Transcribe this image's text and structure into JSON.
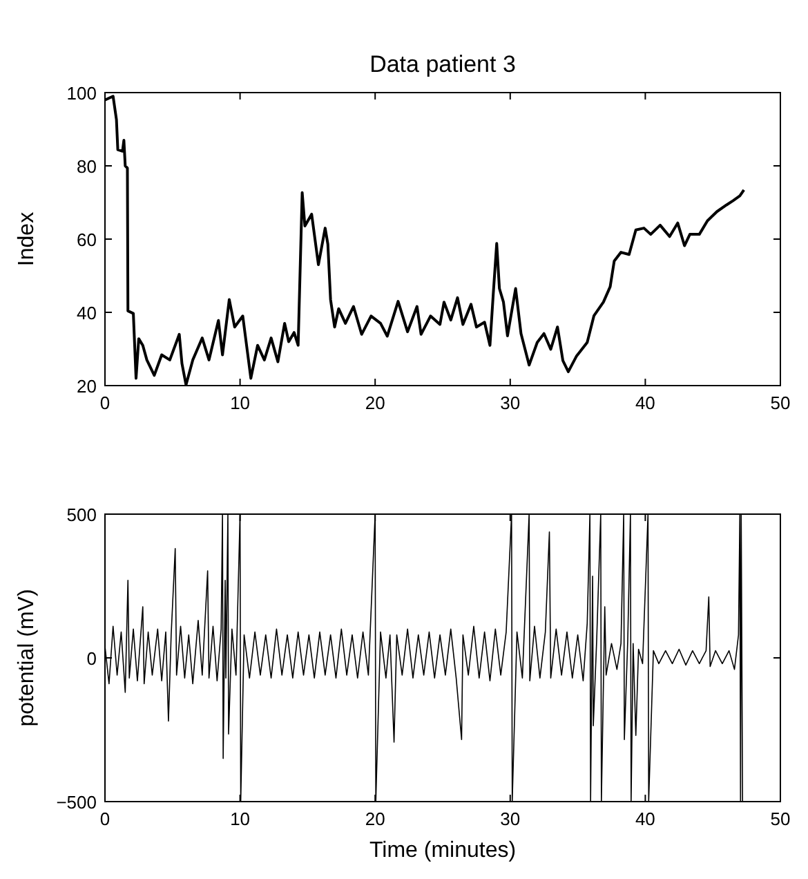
{
  "chart_data": [
    {
      "type": "line",
      "title": "Data patient 3",
      "ylabel": "Index",
      "xlim": [
        0,
        50
      ],
      "xticks": [
        0,
        10,
        20,
        30,
        40,
        50
      ],
      "ylim": [
        20,
        100
      ],
      "yticks": [
        20,
        40,
        60,
        80,
        100
      ],
      "grid": false,
      "marker": "none",
      "line_style": "solid",
      "series": [
        {
          "color": "#000000",
          "x": [
            0,
            0.6,
            0.85,
            0.95,
            1.3,
            1.4,
            1.5,
            1.66,
            1.7,
            2.1,
            2.3,
            2.5,
            2.8,
            3.1,
            3.65,
            4.2,
            4.8,
            5.5,
            5.7,
            6.0,
            6.5,
            7.2,
            7.7,
            8.4,
            8.7,
            9.2,
            9.6,
            10.2,
            10.8,
            11.3,
            11.8,
            12.3,
            12.8,
            13.3,
            13.6,
            14.0,
            14.3,
            14.6,
            14.8,
            15.3,
            15.8,
            16.3,
            16.5,
            16.7,
            17.0,
            17.3,
            17.8,
            18.4,
            19.0,
            19.7,
            20.4,
            20.9,
            21.7,
            22.4,
            23.1,
            23.4,
            24.1,
            24.8,
            25.1,
            25.6,
            26.1,
            26.5,
            27.1,
            27.5,
            28.1,
            28.5,
            28.75,
            29.0,
            29.2,
            29.5,
            29.8,
            30.4,
            30.8,
            31.4,
            32.0,
            32.5,
            33.0,
            33.5,
            33.9,
            34.3,
            34.9,
            35.7,
            36.2,
            36.9,
            37.4,
            37.7,
            38.2,
            38.8,
            39.3,
            39.9,
            40.4,
            41.1,
            41.8,
            42.4,
            42.9,
            43.3,
            44.0,
            44.6,
            45.3,
            46.0,
            46.5,
            47.0,
            47.3
          ],
          "values": [
            98,
            99,
            92.6,
            84.4,
            84,
            87,
            80,
            79.4,
            40.4,
            39.7,
            22,
            32.8,
            31,
            27,
            22.8,
            28.4,
            27,
            34,
            26,
            20.2,
            27,
            33,
            27,
            37.8,
            28.4,
            43.5,
            36,
            39,
            22,
            31,
            27,
            33,
            26.5,
            37,
            32,
            34.5,
            31,
            72.7,
            63.6,
            66.8,
            53,
            63,
            58.6,
            43.5,
            36,
            41,
            37,
            41.6,
            34,
            39,
            37,
            33.5,
            43,
            34.7,
            41.6,
            34,
            39,
            36.7,
            42.8,
            37.9,
            44,
            36.7,
            42.2,
            36,
            37.3,
            31,
            45.3,
            58.8,
            46.5,
            42.8,
            33.6,
            46.5,
            34.2,
            25.6,
            31.8,
            34.2,
            29.9,
            36,
            26.8,
            23.8,
            28,
            31.8,
            39.1,
            42.8,
            47,
            54,
            56.4,
            55.8,
            62.5,
            63,
            61.3,
            63.8,
            60.7,
            64.4,
            58.2,
            61.3,
            61.3,
            65,
            67.5,
            69.3,
            70.5,
            71.8,
            73.4
          ]
        }
      ]
    },
    {
      "type": "line",
      "xlabel": "Time (minutes)",
      "ylabel": "potential (mV)",
      "xlim": [
        0,
        50
      ],
      "xticks": [
        0,
        10,
        20,
        30,
        40,
        50
      ],
      "ylim": [
        -500,
        500
      ],
      "yticks": [
        {
          "value": -500,
          "label": "−500"
        },
        0,
        500
      ],
      "grid": false,
      "marker": "none",
      "line_style": "solid",
      "series": [
        {
          "color": "#000000",
          "x": [
            0,
            0.3,
            0.6,
            0.9,
            1.2,
            1.5,
            1.7,
            1.8,
            2.1,
            2.4,
            2.8,
            2.9,
            3.2,
            3.5,
            3.9,
            4.2,
            4.5,
            4.7,
            4.9,
            5.2,
            5.3,
            5.6,
            5.9,
            6.2,
            6.5,
            6.9,
            7.2,
            7.6,
            7.7,
            8.0,
            8.3,
            8.6,
            8.7,
            8.75,
            8.9,
            8.95,
            9.1,
            9.15,
            9.4,
            9.7,
            10.0,
            10.05,
            10.3,
            10.7,
            11.1,
            11.5,
            11.9,
            12.3,
            12.7,
            13.1,
            13.5,
            13.9,
            14.3,
            14.7,
            15.1,
            15.5,
            15.9,
            16.3,
            16.7,
            17.1,
            17.5,
            17.9,
            18.3,
            18.7,
            19.1,
            19.5,
            20.0,
            20.05,
            20.4,
            20.8,
            21.1,
            21.4,
            21.6,
            22.0,
            22.4,
            22.8,
            23.2,
            23.6,
            24.0,
            24.4,
            24.8,
            25.2,
            25.6,
            26.0,
            26.4,
            26.5,
            26.9,
            27.3,
            27.7,
            28.1,
            28.5,
            28.9,
            29.3,
            29.7,
            30.1,
            30.15,
            30.5,
            30.9,
            31.4,
            31.45,
            31.8,
            32.2,
            32.6,
            32.9,
            33.0,
            33.4,
            33.8,
            34.2,
            34.6,
            35.0,
            35.4,
            35.7,
            35.9,
            35.95,
            36.1,
            36.15,
            36.4,
            36.7,
            36.75,
            37.0,
            37.1,
            37.5,
            37.9,
            38.2,
            38.4,
            38.45,
            38.7,
            38.9,
            38.95,
            39.1,
            39.3,
            39.5,
            39.8,
            40.2,
            40.25,
            40.6,
            41.0,
            41.5,
            42.0,
            42.5,
            43.0,
            43.5,
            44.0,
            44.5,
            44.7,
            44.8,
            45.2,
            45.7,
            46.2,
            46.6,
            46.9,
            47.0,
            47.05,
            47.1,
            47.2
          ],
          "values": [
            40,
            -90,
            110,
            -60,
            90,
            -120,
            270,
            -70,
            100,
            -80,
            178,
            -90,
            90,
            -60,
            100,
            -80,
            90,
            -220,
            80,
            380,
            -60,
            110,
            -70,
            80,
            -90,
            130,
            -60,
            303,
            -70,
            110,
            -80,
            100,
            500,
            -350,
            270,
            -70,
            500,
            -265,
            100,
            -60,
            500,
            -500,
            80,
            -70,
            90,
            -60,
            80,
            -70,
            100,
            -60,
            80,
            -70,
            90,
            -60,
            80,
            -70,
            90,
            -60,
            80,
            -70,
            100,
            -60,
            80,
            -70,
            90,
            -60,
            500,
            -500,
            90,
            -70,
            80,
            -293,
            80,
            -60,
            100,
            -70,
            80,
            -60,
            90,
            -70,
            80,
            -60,
            100,
            -70,
            -284,
            80,
            -60,
            110,
            -70,
            90,
            -80,
            100,
            -60,
            90,
            500,
            -500,
            90,
            -70,
            500,
            -80,
            110,
            -70,
            90,
            438,
            -70,
            100,
            -60,
            90,
            -70,
            80,
            -80,
            120,
            500,
            -500,
            284,
            -236,
            60,
            500,
            -500,
            178,
            -60,
            50,
            -40,
            50,
            500,
            -284,
            60,
            500,
            -500,
            50,
            -270,
            30,
            -20,
            500,
            -500,
            25,
            -20,
            25,
            -20,
            30,
            -25,
            25,
            -20,
            25,
            212,
            -30,
            25,
            -20,
            25,
            -40,
            80,
            500,
            -500,
            500,
            -500
          ]
        }
      ]
    }
  ]
}
